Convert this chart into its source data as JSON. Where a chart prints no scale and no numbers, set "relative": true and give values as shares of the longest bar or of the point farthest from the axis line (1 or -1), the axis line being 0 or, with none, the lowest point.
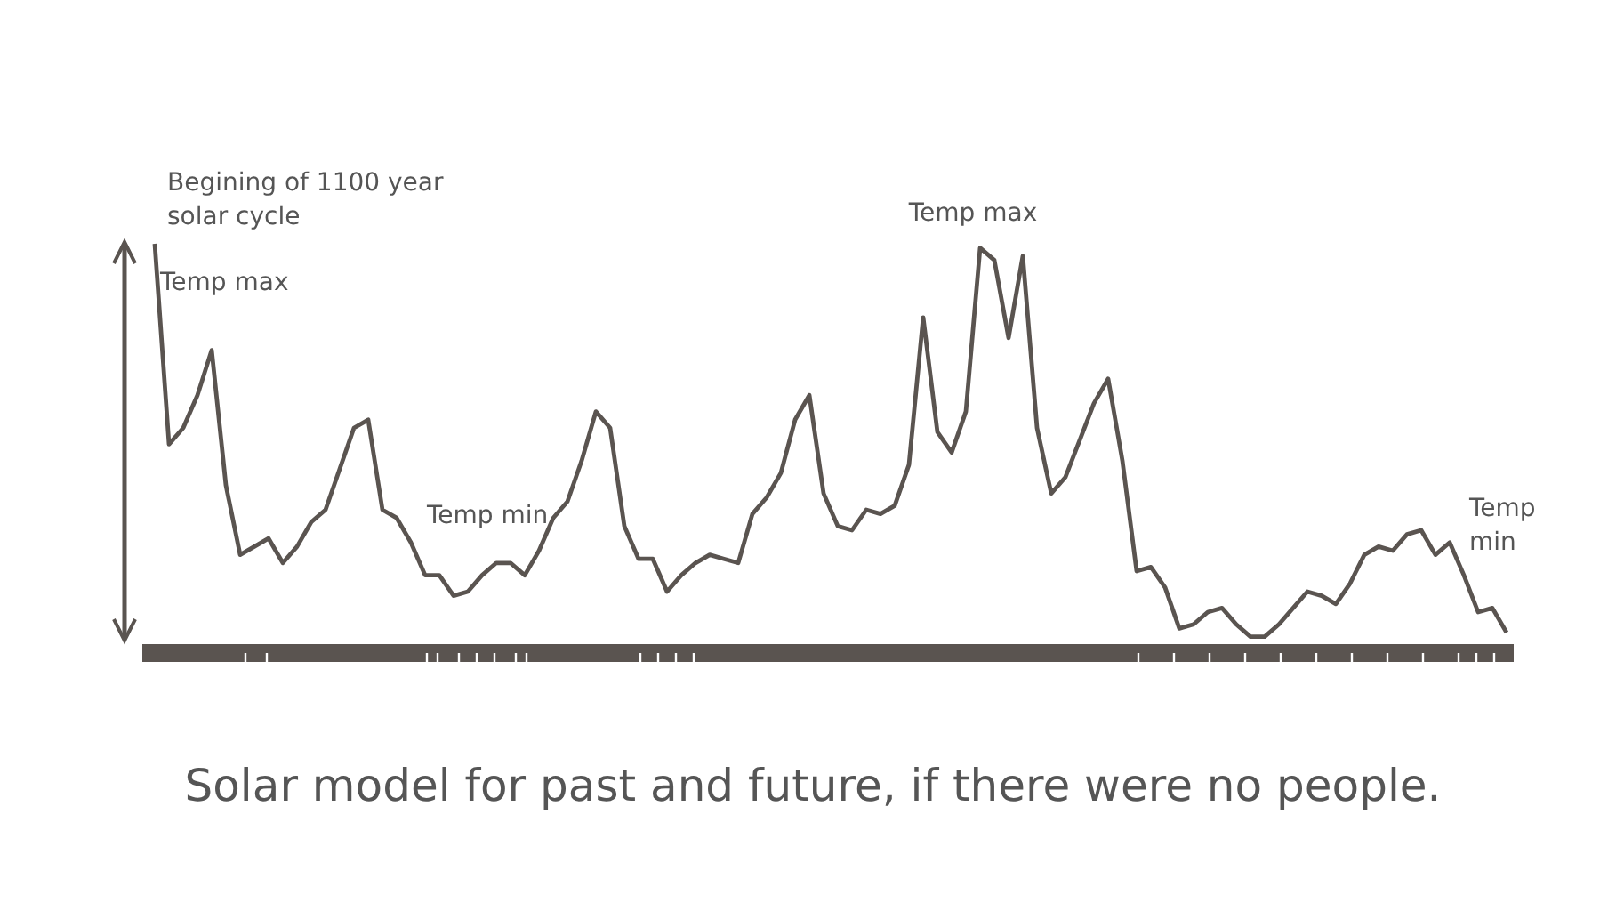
{
  "chart_data": {
    "type": "line",
    "title": "Solar model for past and future, if there were no people.",
    "relative": true,
    "categories": [
      null,
      null,
      null,
      null,
      null,
      null,
      null,
      null,
      null,
      null,
      null,
      null,
      null,
      null,
      null,
      null,
      null,
      null,
      null,
      null,
      null,
      null,
      null,
      null,
      null,
      null,
      null,
      null,
      null,
      null,
      null,
      null,
      null,
      null,
      null,
      null,
      null,
      null,
      null,
      null,
      null,
      null,
      null,
      null,
      null,
      null,
      null,
      null,
      null,
      null,
      null,
      null,
      null,
      null,
      null,
      null,
      null,
      null,
      null,
      null,
      null,
      null,
      null,
      null,
      null,
      null,
      null,
      null,
      null,
      null,
      null,
      null,
      null,
      null,
      null,
      null,
      null,
      null,
      null,
      null,
      null,
      null,
      null,
      null,
      null,
      null,
      null,
      null,
      null,
      null,
      null,
      null,
      null,
      null,
      null,
      null
    ],
    "series": [
      {
        "color": "#5a5450",
        "values": [
          1.0,
          0.51,
          0.55,
          0.63,
          0.74,
          0.41,
          0.24,
          0.26,
          0.28,
          0.22,
          0.26,
          0.32,
          0.35,
          0.45,
          0.55,
          0.57,
          0.35,
          0.33,
          0.27,
          0.19,
          0.19,
          0.14,
          0.15,
          0.19,
          0.22,
          0.22,
          0.19,
          0.25,
          0.33,
          0.37,
          0.47,
          0.59,
          0.55,
          0.31,
          0.23,
          0.23,
          0.15,
          0.19,
          0.22,
          0.24,
          0.23,
          0.22,
          0.34,
          0.38,
          0.44,
          0.57,
          0.63,
          0.39,
          0.31,
          0.3,
          0.35,
          0.34,
          0.36,
          0.46,
          0.82,
          0.54,
          0.49,
          0.59,
          0.99,
          0.96,
          0.77,
          0.97,
          0.55,
          0.39,
          0.43,
          0.52,
          0.61,
          0.67,
          0.47,
          0.2,
          0.21,
          0.16,
          0.06,
          0.07,
          0.1,
          0.11,
          0.07,
          0.04,
          0.04,
          0.07,
          0.11,
          0.15,
          0.14,
          0.12,
          0.17,
          0.24,
          0.26,
          0.25,
          0.29,
          0.3,
          0.24,
          0.27,
          0.19,
          0.1,
          0.11,
          0.05
        ]
      }
    ],
    "annotations": [
      "Begining of 1100 year solar cycle",
      "Temp max",
      "Temp min",
      "Temp max",
      "Temp min"
    ]
  }
}
